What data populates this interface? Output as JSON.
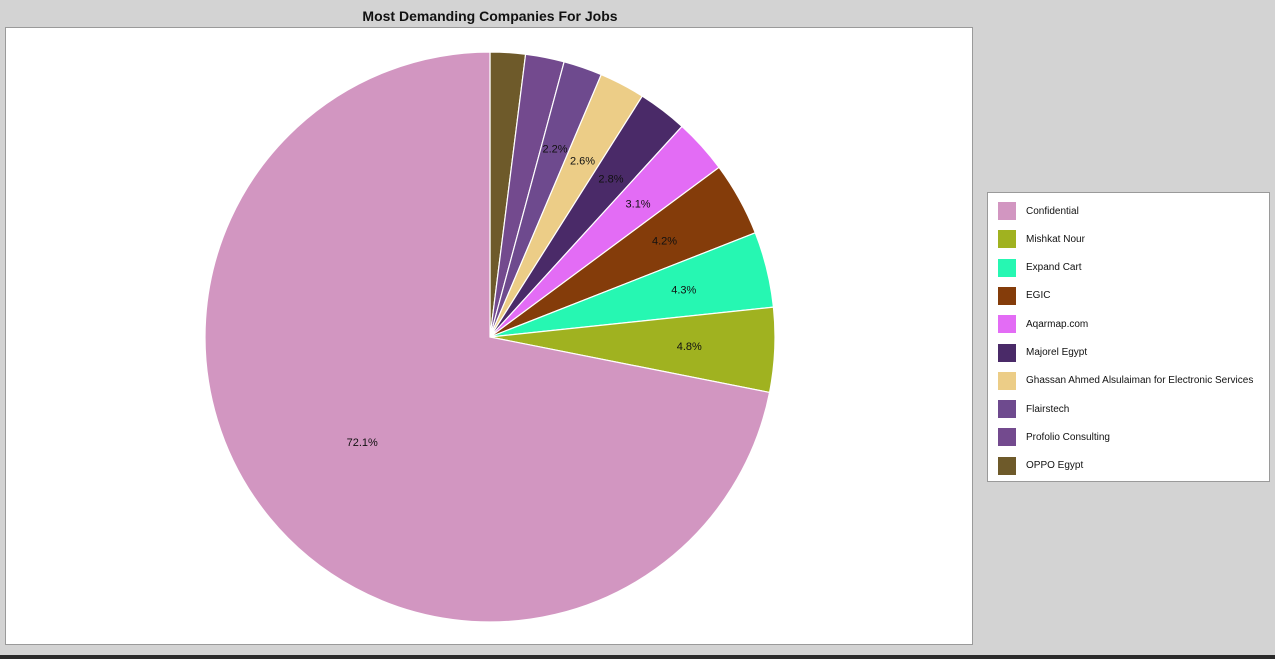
{
  "chart_data": {
    "type": "pie",
    "title": "Most Demanding Companies For Jobs",
    "legend_position": "right",
    "slices": [
      {
        "label": "Confidential",
        "value": 72.1,
        "value_label": "72.1%",
        "color": "#d296c1"
      },
      {
        "label": "Mishkat Nour",
        "value": 4.8,
        "value_label": "4.8%",
        "color": "#a0b220"
      },
      {
        "label": "Expand Cart",
        "value": 4.3,
        "value_label": "4.3%",
        "color": "#26f7b2"
      },
      {
        "label": "EGIC",
        "value": 4.2,
        "value_label": "4.2%",
        "color": "#843c0a"
      },
      {
        "label": "Aqarmap.com",
        "value": 3.1,
        "value_label": "3.1%",
        "color": "#e36cf5"
      },
      {
        "label": "Majorel Egypt",
        "value": 2.8,
        "value_label": "2.8%",
        "color": "#4a2a68"
      },
      {
        "label": "Ghassan Ahmed Alsulaiman for Electronic Services",
        "value": 2.6,
        "value_label": "2.6%",
        "color": "#eccd87"
      },
      {
        "label": "Flairstech",
        "value": 2.2,
        "value_label": "2.2%",
        "color": "#6e4a8e"
      },
      {
        "label": "Profolio Consulting",
        "value": 2.2,
        "value_label": "",
        "color": "#734a8e"
      },
      {
        "label": "OPPO Egypt",
        "value": 2.0,
        "value_label": "",
        "color": "#6e5a2a"
      }
    ]
  }
}
